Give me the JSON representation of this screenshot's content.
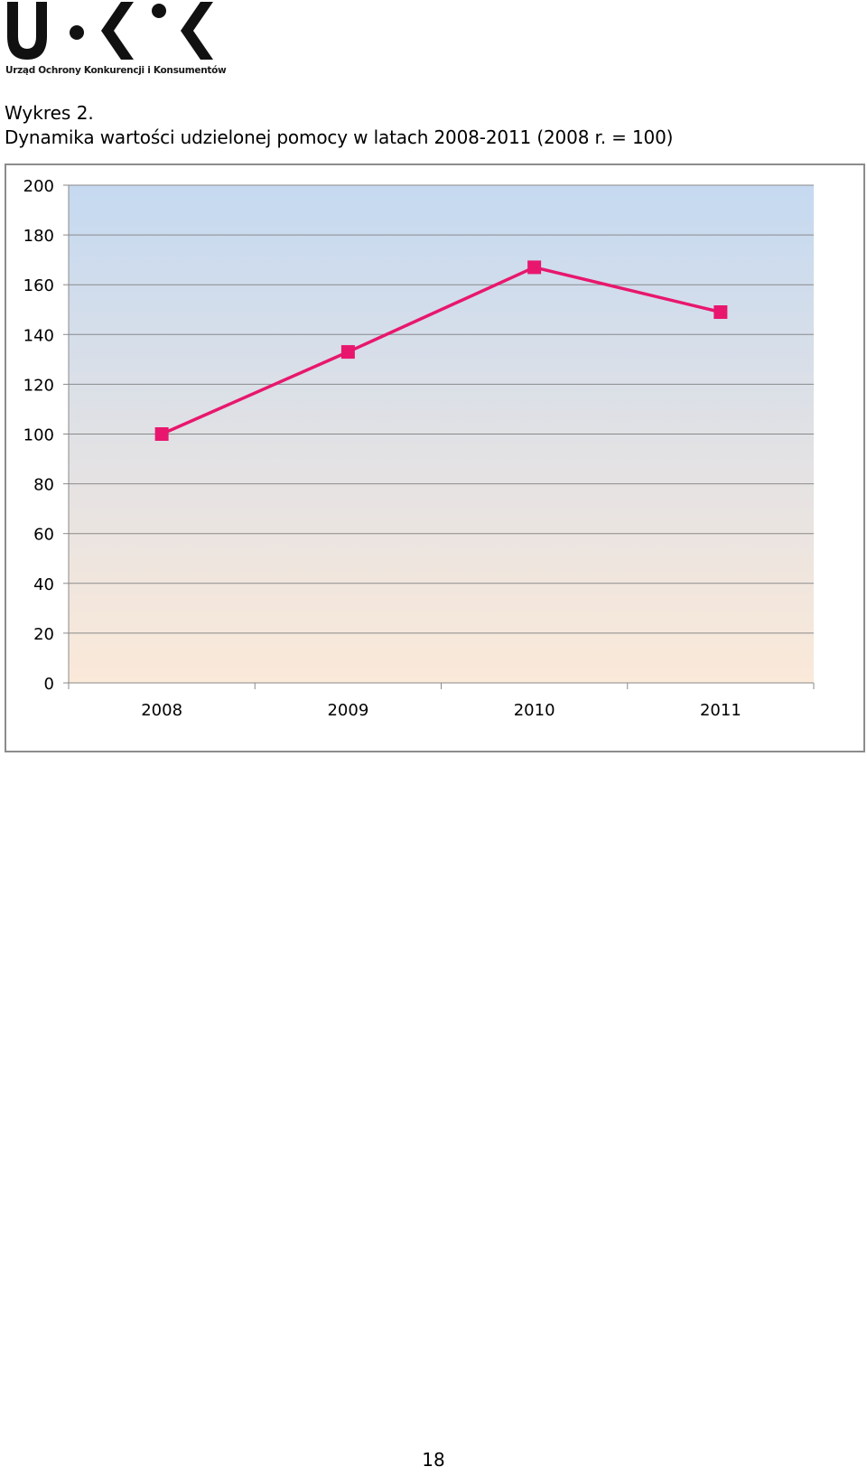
{
  "logo": {
    "wordmark": "UOKiK",
    "caption": "Urząd Ochrony Konkurencji i Konsumentów"
  },
  "figure": {
    "label": "Wykres 2.",
    "title": "Dynamika wartości udzielonej pomocy w latach 2008-2011 (2008 r. = 100)"
  },
  "chart_data": {
    "type": "line",
    "categories": [
      "2008",
      "2009",
      "2010",
      "2011"
    ],
    "series": [
      {
        "values": [
          100,
          133,
          167,
          149
        ],
        "color": "#e8176d",
        "marker": "square"
      }
    ],
    "ylim": [
      0,
      200
    ],
    "yticks": [
      0,
      20,
      40,
      60,
      80,
      100,
      120,
      140,
      160,
      180,
      200
    ],
    "grid": true,
    "legend": "none",
    "plot_background": {
      "top_color": "#c5d9f1",
      "bottom_color": "#fbe9d9"
    }
  },
  "page_number": "18"
}
